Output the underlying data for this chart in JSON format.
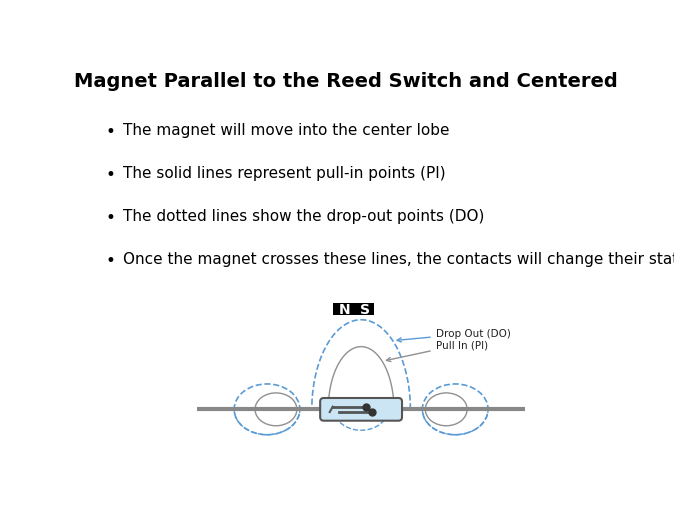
{
  "title": "Magnet Parallel to the Reed Switch and Centered",
  "bullets": [
    "The magnet will move into the center lobe",
    "The solid lines represent pull-in points (PI)",
    "The dotted lines show the drop-out points (DO)",
    "Once the magnet crosses these lines, the contacts will change their state"
  ],
  "magnet_label_N": "N",
  "magnet_label_S": "S",
  "label_drop_out": "Drop Out (DO)",
  "label_pull_in": "Pull In (PI)",
  "bg_color": "#ffffff",
  "text_color": "#000000",
  "bullet_color": "#000000",
  "dashed_color": "#5b9bd5",
  "solid_color": "#909090",
  "reed_body_color": "#cce5f5",
  "reed_outline_color": "#555555",
  "wire_color": "#888888",
  "magnet_bg": "#000000",
  "magnet_text_color": "#ffffff",
  "title_fontsize": 14,
  "bullet_fontsize": 11
}
